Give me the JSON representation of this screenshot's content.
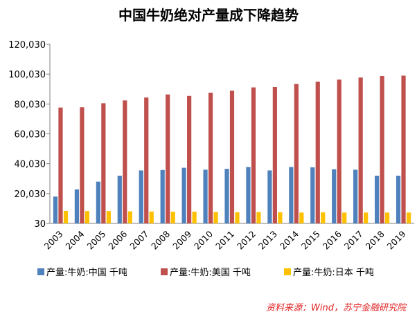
{
  "chart_data": {
    "type": "bar",
    "title": "中国牛奶绝对产量成下降趋势",
    "xlabel": "",
    "ylabel": "",
    "categories": [
      "2003",
      "2004",
      "2005",
      "2006",
      "2007",
      "2008",
      "2009",
      "2010",
      "2011",
      "2012",
      "2013",
      "2014",
      "2015",
      "2016",
      "2017",
      "2018",
      "2019"
    ],
    "yticks": [
      "120,030",
      "100,030",
      "80,030",
      "60,030",
      "40,030",
      "20,030",
      "30"
    ],
    "ylim": [
      30,
      120030
    ],
    "grid": false,
    "legend_position": "bottom",
    "series": [
      {
        "name": "产量:牛奶:中国 千吨",
        "color": "#4f81bd",
        "values": [
          18000,
          22800,
          28000,
          32000,
          35500,
          35800,
          37300,
          36000,
          36600,
          37800,
          35500,
          37800,
          37600,
          36300,
          36000,
          32000,
          32000
        ]
      },
      {
        "name": "产量:牛奶:美国 千吨",
        "color": "#c0504d",
        "values": [
          77600,
          77800,
          80500,
          82400,
          84400,
          86400,
          85400,
          87600,
          89000,
          91100,
          91300,
          93500,
          95000,
          96400,
          97800,
          98700,
          99000
        ]
      },
      {
        "name": "产量:牛奶:日本 千吨",
        "color": "#ffc000",
        "values": [
          8400,
          8300,
          8300,
          8100,
          8000,
          7900,
          7900,
          7600,
          7500,
          7600,
          7500,
          7300,
          7400,
          7300,
          7300,
          7300,
          7300
        ]
      }
    ]
  },
  "source": "资料来源：Wind，苏宁金融研究院"
}
